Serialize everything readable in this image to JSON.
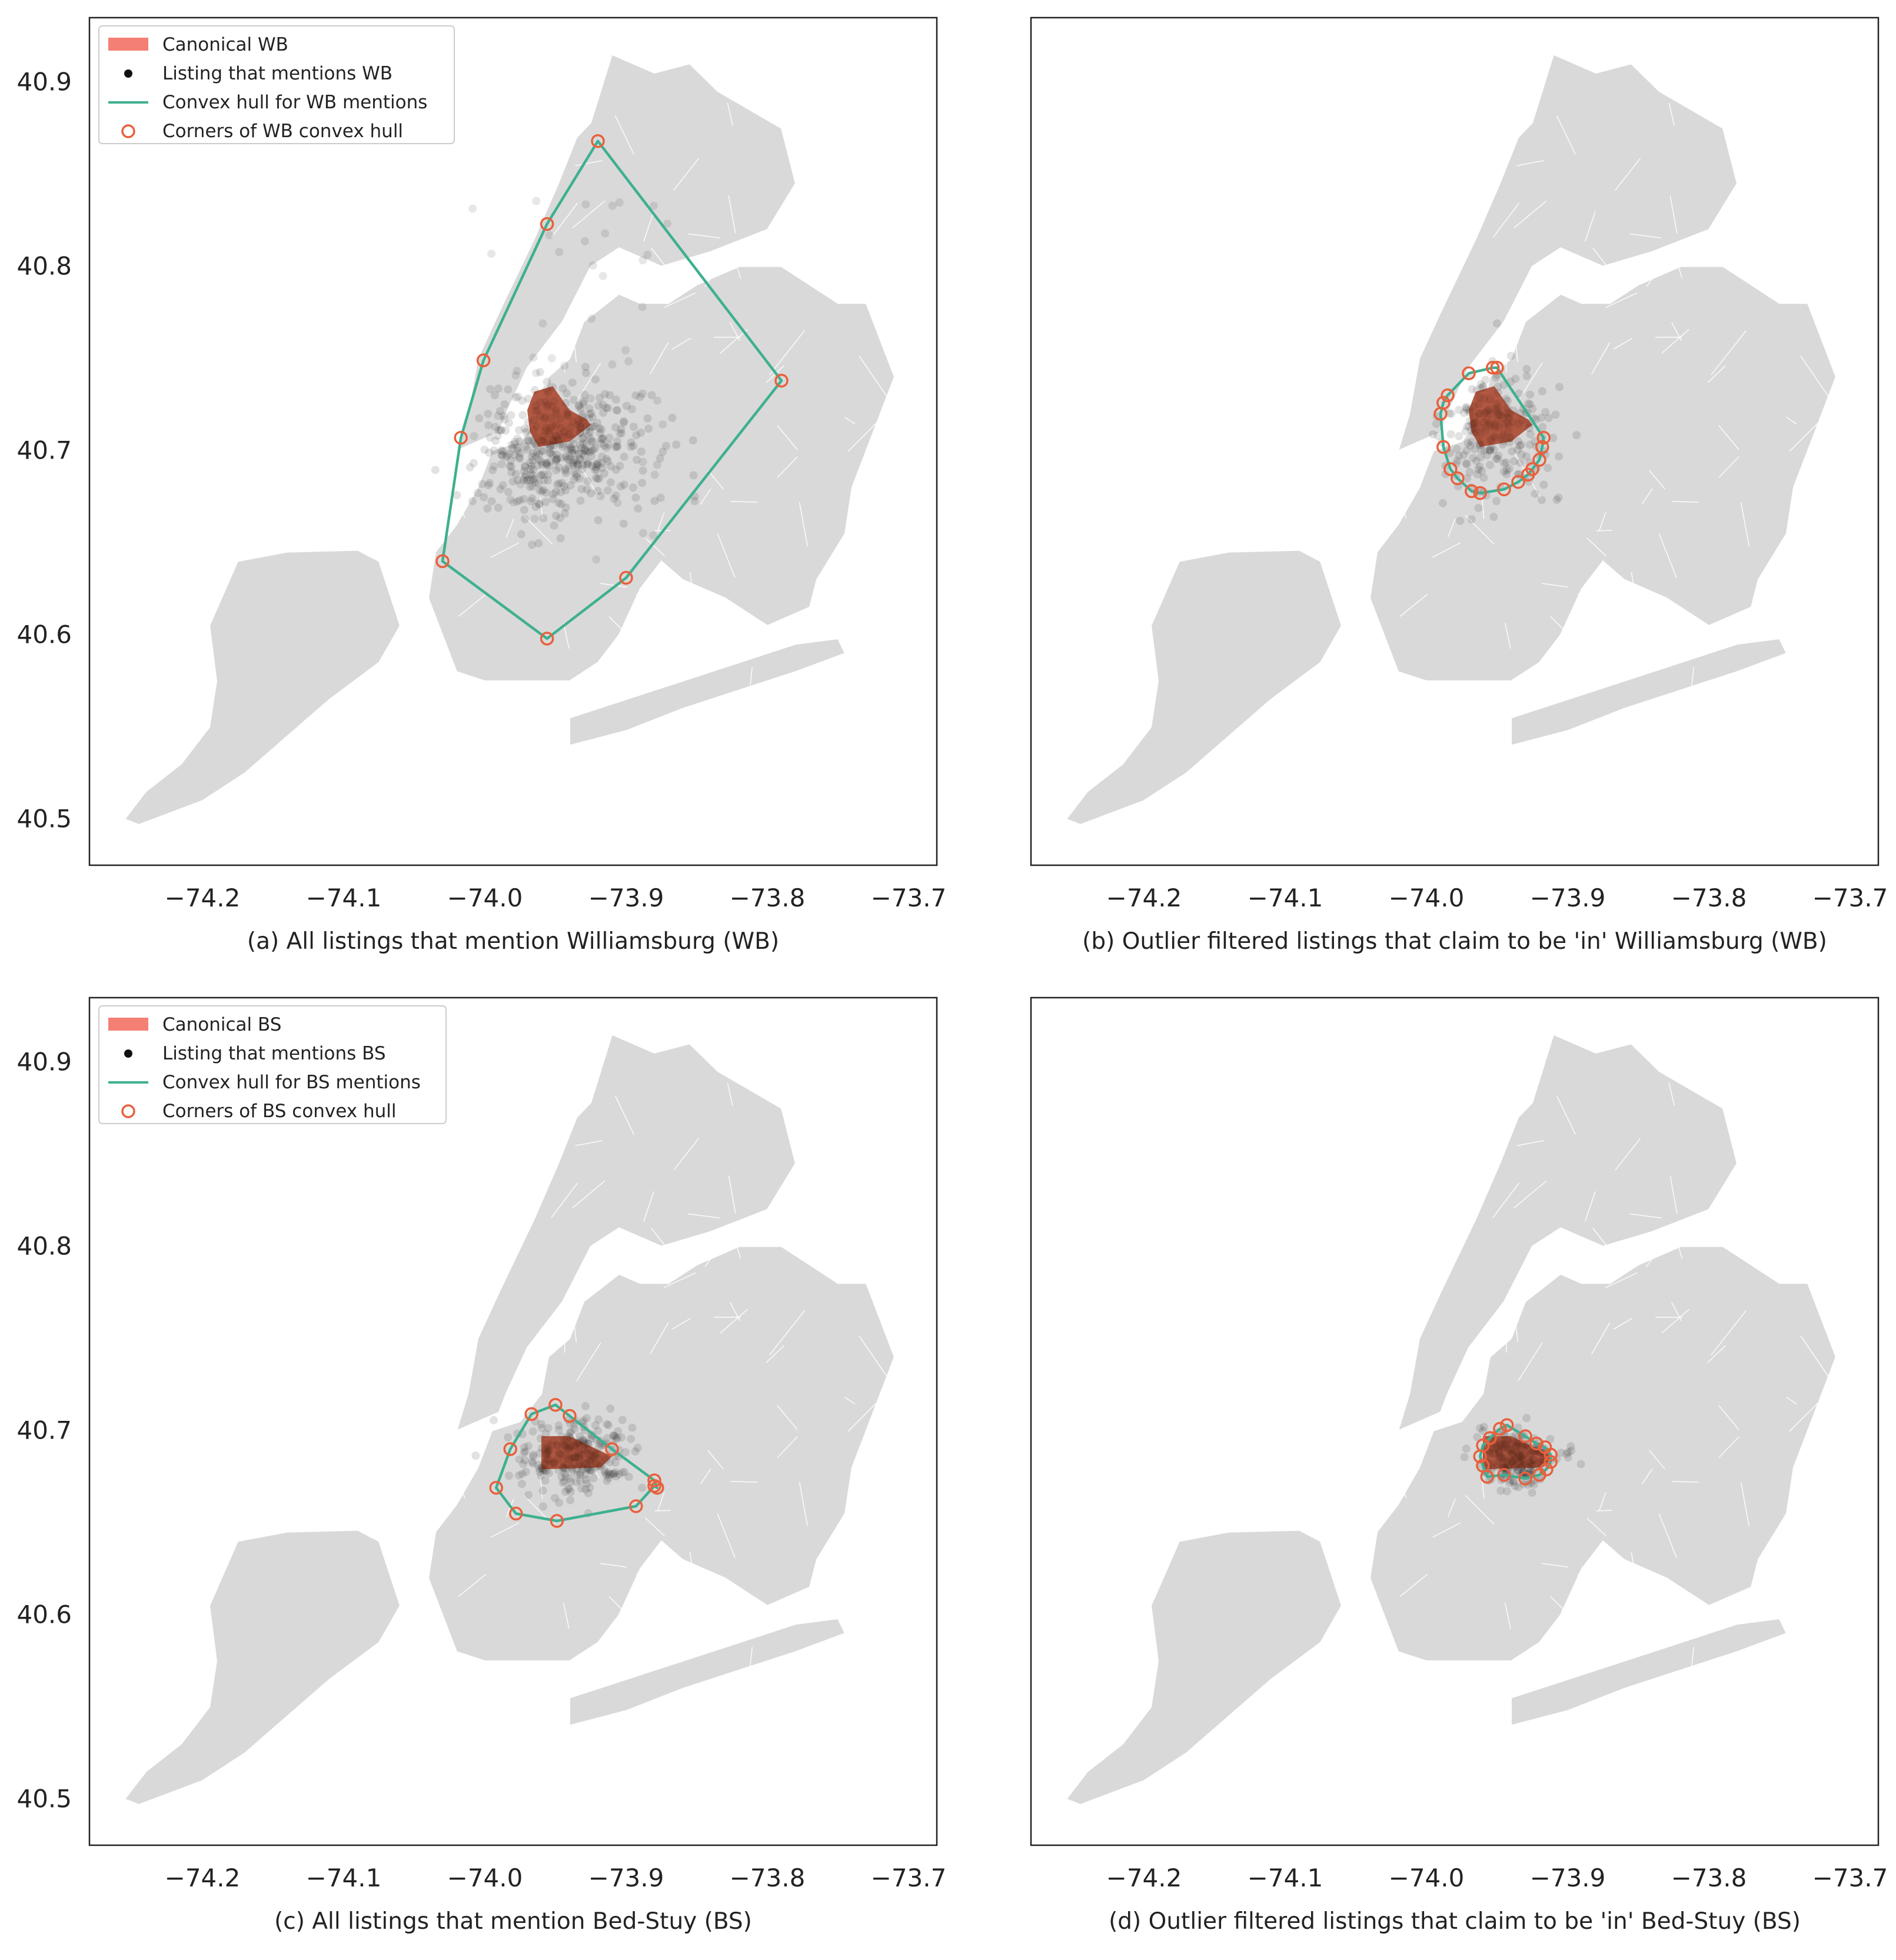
{
  "colors": {
    "land": "#d9d9d9",
    "land_border": "#ffffff",
    "canonical": "#f47f74",
    "canonical_overlap": "#7a2e10",
    "listing": "#111111",
    "hull": "#3db08f",
    "corner": "#e8603c",
    "axes": "#222222"
  },
  "panels": [
    {
      "id": "a",
      "caption": "(a) All listings that mention Williamsburg (WB)",
      "legend": {
        "canonical": "Canonical WB",
        "listing": "Listing that mentions WB",
        "hull": "Convex hull for WB mentions",
        "corners": "Corners of WB convex hull"
      }
    },
    {
      "id": "b",
      "caption": "(b) Outlier filtered listings that claim to be 'in' Williamsburg (WB)",
      "legend": null
    },
    {
      "id": "c",
      "caption": "(c) All listings that mention Bed-Stuy (BS)",
      "legend": {
        "canonical": "Canonical BS",
        "listing": "Listing that mentions BS",
        "hull": "Convex hull for BS mentions",
        "corners": "Corners of BS convex hull"
      }
    },
    {
      "id": "d",
      "caption": "(d) Outlier filtered listings that claim to be 'in' Bed-Stuy (BS)",
      "legend": null
    }
  ],
  "chart_data": [
    {
      "type": "scatter",
      "panel": "a",
      "xlim": [
        -74.28,
        -73.68
      ],
      "ylim": [
        40.475,
        40.935
      ],
      "x_ticks": [
        -74.2,
        -74.1,
        -74.0,
        -73.9,
        -73.8,
        -73.7
      ],
      "x_tick_labels": [
        "−74.2",
        "−74.1",
        "−74.0",
        "−73.9",
        "−73.8",
        "−73.7"
      ],
      "y_ticks": [
        40.5,
        40.6,
        40.7,
        40.8,
        40.9
      ],
      "y_tick_labels": [
        "40.5",
        "40.6",
        "40.7",
        "40.8",
        "40.9"
      ],
      "canonical_polygon": [
        [
          -73.965,
          40.732
        ],
        [
          -73.952,
          40.735
        ],
        [
          -73.94,
          40.722
        ],
        [
          -73.928,
          40.717
        ],
        [
          -73.925,
          40.714
        ],
        [
          -73.94,
          40.705
        ],
        [
          -73.962,
          40.702
        ],
        [
          -73.968,
          40.71
        ],
        [
          -73.97,
          40.722
        ]
      ],
      "hull_corners": [
        [
          -73.92,
          40.868
        ],
        [
          -73.79,
          40.738
        ],
        [
          -73.9,
          40.631
        ],
        [
          -73.956,
          40.598
        ],
        [
          -74.03,
          40.64
        ],
        [
          -74.017,
          40.707
        ],
        [
          -74.001,
          40.749
        ],
        [
          -73.956,
          40.823
        ]
      ],
      "listing_cluster": {
        "center": [
          -73.945,
          40.7
        ],
        "spread": [
          0.03,
          0.018
        ]
      }
    },
    {
      "type": "scatter",
      "panel": "b",
      "xlim": [
        -74.28,
        -73.68
      ],
      "ylim": [
        40.475,
        40.935
      ],
      "x_ticks": [
        -74.2,
        -74.1,
        -74.0,
        -73.9,
        -73.8,
        -73.7
      ],
      "x_tick_labels": [
        "−74.2",
        "−74.1",
        "−74.0",
        "−73.9",
        "−73.8",
        "−73.7"
      ],
      "canonical_polygon": [
        [
          -73.965,
          40.732
        ],
        [
          -73.952,
          40.735
        ],
        [
          -73.94,
          40.722
        ],
        [
          -73.928,
          40.717
        ],
        [
          -73.925,
          40.714
        ],
        [
          -73.94,
          40.705
        ],
        [
          -73.962,
          40.702
        ],
        [
          -73.968,
          40.71
        ],
        [
          -73.97,
          40.722
        ]
      ],
      "hull_corners": [
        [
          -73.95,
          40.745
        ],
        [
          -73.953,
          40.745
        ],
        [
          -73.97,
          40.742
        ],
        [
          -73.985,
          40.73
        ],
        [
          -73.988,
          40.726
        ],
        [
          -73.99,
          40.72
        ],
        [
          -73.988,
          40.702
        ],
        [
          -73.983,
          40.69
        ],
        [
          -73.978,
          40.685
        ],
        [
          -73.968,
          40.678
        ],
        [
          -73.962,
          40.677
        ],
        [
          -73.945,
          40.679
        ],
        [
          -73.935,
          40.683
        ],
        [
          -73.928,
          40.687
        ],
        [
          -73.925,
          40.69
        ],
        [
          -73.92,
          40.695
        ],
        [
          -73.918,
          40.702
        ],
        [
          -73.917,
          40.707
        ]
      ],
      "listing_cluster": {
        "center": [
          -73.95,
          40.71
        ],
        "spread": [
          0.02,
          0.02
        ]
      }
    },
    {
      "type": "scatter",
      "panel": "c",
      "xlim": [
        -74.28,
        -73.68
      ],
      "ylim": [
        40.475,
        40.935
      ],
      "x_ticks": [
        -74.2,
        -74.1,
        -74.0,
        -73.9,
        -73.8,
        -73.7
      ],
      "x_tick_labels": [
        "−74.2",
        "−74.1",
        "−74.0",
        "−73.9",
        "−73.8",
        "−73.7"
      ],
      "y_ticks": [
        40.5,
        40.6,
        40.7,
        40.8,
        40.9
      ],
      "y_tick_labels": [
        "40.5",
        "40.6",
        "40.7",
        "40.8",
        "40.9"
      ],
      "canonical_polygon": [
        [
          -73.96,
          40.697
        ],
        [
          -73.94,
          40.697
        ],
        [
          -73.91,
          40.686
        ],
        [
          -73.918,
          40.68
        ],
        [
          -73.96,
          40.679
        ]
      ],
      "hull_corners": [
        [
          -73.95,
          40.714
        ],
        [
          -73.94,
          40.708
        ],
        [
          -73.91,
          40.69
        ],
        [
          -73.88,
          40.673
        ],
        [
          -73.878,
          40.669
        ],
        [
          -73.88,
          40.67
        ],
        [
          -73.893,
          40.659
        ],
        [
          -73.949,
          40.651
        ],
        [
          -73.978,
          40.655
        ],
        [
          -73.992,
          40.669
        ],
        [
          -73.982,
          40.69
        ],
        [
          -73.967,
          40.709
        ]
      ],
      "listing_cluster": {
        "center": [
          -73.935,
          40.686
        ],
        "spread": [
          0.02,
          0.01
        ]
      }
    },
    {
      "type": "scatter",
      "panel": "d",
      "xlim": [
        -74.28,
        -73.68
      ],
      "ylim": [
        40.475,
        40.935
      ],
      "x_ticks": [
        -74.2,
        -74.1,
        -74.0,
        -73.9,
        -73.8,
        -73.7
      ],
      "x_tick_labels": [
        "−74.2",
        "−74.1",
        "−74.0",
        "−73.9",
        "−73.8",
        "−73.7"
      ],
      "canonical_polygon": [
        [
          -73.96,
          40.697
        ],
        [
          -73.94,
          40.697
        ],
        [
          -73.91,
          40.686
        ],
        [
          -73.918,
          40.68
        ],
        [
          -73.96,
          40.679
        ]
      ],
      "hull_corners": [
        [
          -73.943,
          40.703
        ],
        [
          -73.948,
          40.701
        ],
        [
          -73.955,
          40.696
        ],
        [
          -73.96,
          40.692
        ],
        [
          -73.962,
          40.686
        ],
        [
          -73.96,
          40.681
        ],
        [
          -73.957,
          40.675
        ],
        [
          -73.945,
          40.676
        ],
        [
          -73.93,
          40.674
        ],
        [
          -73.92,
          40.676
        ],
        [
          -73.915,
          40.679
        ],
        [
          -73.912,
          40.683
        ],
        [
          -73.912,
          40.687
        ],
        [
          -73.916,
          40.691
        ],
        [
          -73.922,
          40.693
        ],
        [
          -73.93,
          40.697
        ]
      ],
      "listing_cluster": {
        "center": [
          -73.935,
          40.686
        ],
        "spread": [
          0.015,
          0.008
        ]
      }
    }
  ]
}
